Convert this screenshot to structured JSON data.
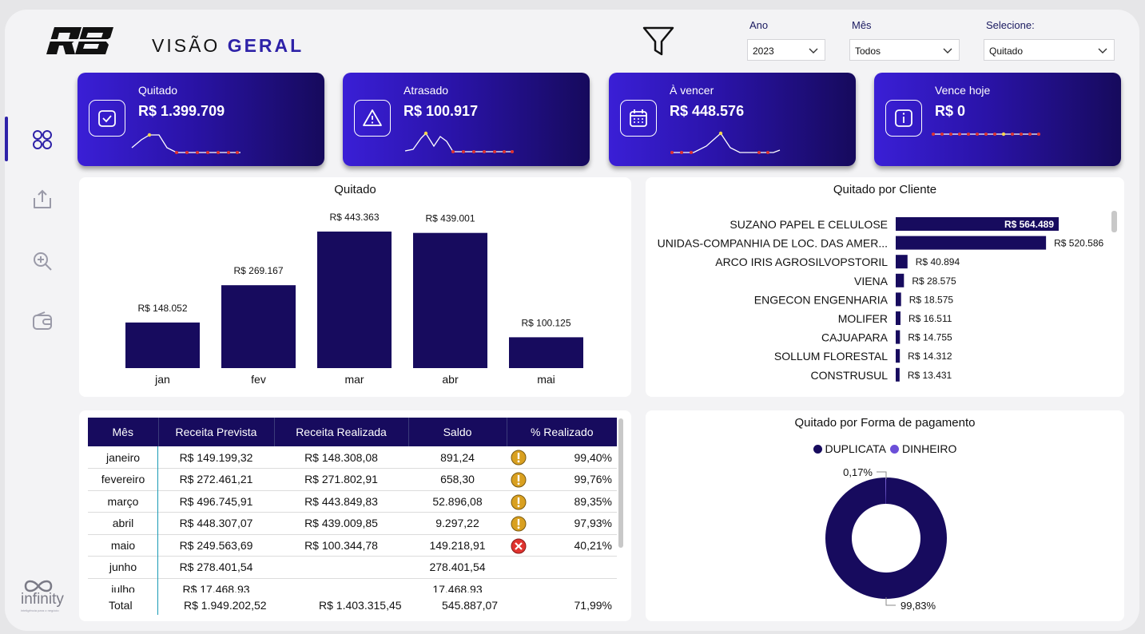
{
  "header": {
    "logo_text": "RB",
    "title_part1": "VISÃO",
    "title_part2": "GERAL"
  },
  "slicers": [
    {
      "label": "Ano",
      "value": "2023"
    },
    {
      "label": "Mês",
      "value": "Todos"
    },
    {
      "label": "Selecione:",
      "value": "Quitado"
    }
  ],
  "kpis": [
    {
      "label": "Quitado",
      "value": "R$ 1.399.709",
      "icon": "check-calendar-icon"
    },
    {
      "label": "Atrasado",
      "value": "R$ 100.917",
      "icon": "warning-icon"
    },
    {
      "label": "À vencer",
      "value": "R$ 448.576",
      "icon": "calendar-icon"
    },
    {
      "label": "Vence hoje",
      "value": "R$ 0",
      "icon": "info-icon"
    }
  ],
  "monthly_chart": {
    "title": "Quitado",
    "categories": [
      "jan",
      "fev",
      "mar",
      "abr",
      "mai"
    ],
    "values": [
      148052,
      269167,
      443363,
      439001,
      100125
    ],
    "labels": [
      "R$ 148.052",
      "R$ 269.167",
      "R$ 443.363",
      "R$ 439.001",
      "R$ 100.125"
    ],
    "color": "#170b5e"
  },
  "client_chart": {
    "title": "Quitado por Cliente",
    "clients": [
      "SUZANO PAPEL E CELULOSE",
      "UNIDAS-COMPANHIA DE LOC. DAS AMER...",
      "ARCO IRIS AGROSILVOPSTORIL",
      "VIENA",
      "ENGECON ENGENHARIA",
      "MOLIFER",
      "CAJUAPARA",
      "SOLLUM FLORESTAL",
      "CONSTRUSUL"
    ],
    "values": [
      564489,
      520586,
      40894,
      28575,
      18575,
      16511,
      14755,
      14312,
      13431
    ],
    "labels": [
      "R$ 564.489",
      "R$ 520.586",
      "R$ 40.894",
      "R$ 28.575",
      "R$ 18.575",
      "R$ 16.511",
      "R$ 14.755",
      "R$ 14.312",
      "R$ 13.431"
    ],
    "color": "#170b5e"
  },
  "table": {
    "headers": [
      "Mês",
      "Receita Prevista",
      "Receita Realizada",
      "Saldo",
      "% Realizado"
    ],
    "rows": [
      {
        "mes": "janeiro",
        "prevista": "R$ 149.199,32",
        "realizada": "R$ 148.308,08",
        "saldo": "891,24",
        "pct": "99,40%",
        "status": "warning"
      },
      {
        "mes": "fevereiro",
        "prevista": "R$ 272.461,21",
        "realizada": "R$ 271.802,91",
        "saldo": "658,30",
        "pct": "99,76%",
        "status": "warning"
      },
      {
        "mes": "março",
        "prevista": "R$ 496.745,91",
        "realizada": "R$ 443.849,83",
        "saldo": "52.896,08",
        "pct": "89,35%",
        "status": "warning"
      },
      {
        "mes": "abril",
        "prevista": "R$ 448.307,07",
        "realizada": "R$ 439.009,85",
        "saldo": "9.297,22",
        "pct": "97,93%",
        "status": "warning"
      },
      {
        "mes": "maio",
        "prevista": "R$ 249.563,69",
        "realizada": "R$ 100.344,78",
        "saldo": "149.218,91",
        "pct": "40,21%",
        "status": "error"
      },
      {
        "mes": "junho",
        "prevista": "R$ 278.401,54",
        "realizada": "",
        "saldo": "278.401,54",
        "pct": "",
        "status": ""
      },
      {
        "mes": "julho",
        "prevista": "R$ 17.468,93",
        "realizada": "",
        "saldo": "17.468,93",
        "pct": "",
        "status": ""
      }
    ],
    "total": {
      "label": "Total",
      "prevista": "R$ 1.949.202,52",
      "realizada": "R$ 1.403.315,45",
      "saldo": "545.887,07",
      "pct": "71,99%"
    }
  },
  "donut_chart": {
    "title": "Quitado por Forma de pagamento",
    "series": [
      {
        "name": "DUPLICATA",
        "value": 99.83,
        "label": "99,83%",
        "color": "#170b5e"
      },
      {
        "name": "DINHEIRO",
        "value": 0.17,
        "label": "0,17%",
        "color": "#6b4fd8"
      }
    ]
  },
  "footer": {
    "brand": "infinity",
    "tagline": "inteligência para o negócio"
  },
  "colors": {
    "accent": "#2e22a8",
    "dark": "#170b5e",
    "warning": "#d9a020",
    "error": "#e0332f"
  }
}
